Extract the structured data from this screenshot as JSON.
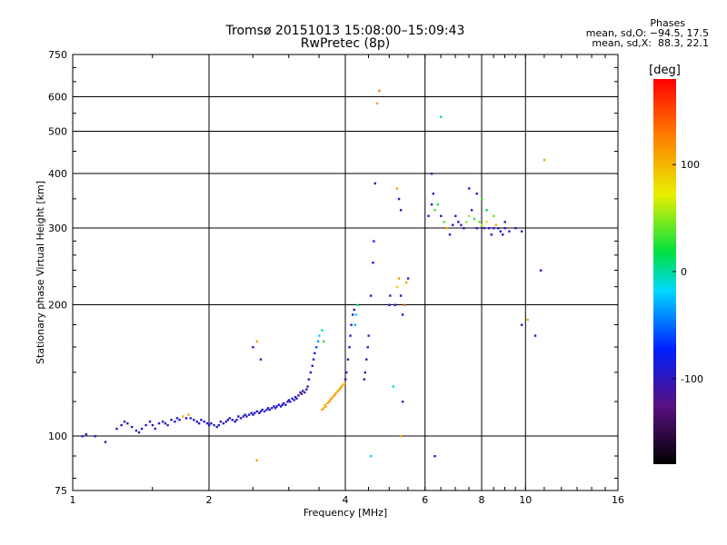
{
  "chart_data": {
    "type": "scatter",
    "title": "Tromsø 20151013 15:08:00–15:09:43",
    "subtitle": "RwPretec (8p)",
    "xlabel": "Frequency [MHz]",
    "ylabel": "Stationary phase Virtual Height [km]",
    "x_scale": "log",
    "y_scale": "log",
    "xlim": [
      1,
      16
    ],
    "ylim": [
      75,
      750
    ],
    "x_ticks": [
      1,
      2,
      4,
      6,
      8,
      10,
      16
    ],
    "y_ticks": [
      75,
      100,
      200,
      300,
      400,
      500,
      600,
      750
    ],
    "grid": true,
    "colorbar": {
      "label": "[deg]",
      "range": [
        -180,
        180
      ],
      "ticks": [
        100,
        0,
        -100
      ]
    },
    "stats_header": "Phases",
    "stats": [
      "mean, sd,O: −94.5, 17.5",
      "mean, sd,X:  88.3, 22.1"
    ],
    "series": [
      {
        "points": [
          [
            1.05,
            100,
            -95
          ],
          [
            1.07,
            101,
            -90
          ],
          [
            1.12,
            100,
            -92
          ],
          [
            1.18,
            97,
            -96
          ],
          [
            1.25,
            104,
            -98
          ],
          [
            1.28,
            106,
            -92
          ],
          [
            1.3,
            108,
            -100
          ],
          [
            1.32,
            107,
            -94
          ],
          [
            1.35,
            105,
            -96
          ],
          [
            1.38,
            103,
            -95
          ],
          [
            1.4,
            102,
            -100
          ],
          [
            1.42,
            104,
            -88
          ],
          [
            1.45,
            106,
            -94
          ],
          [
            1.48,
            108,
            -96
          ],
          [
            1.5,
            106,
            -92
          ],
          [
            1.52,
            104,
            -95
          ],
          [
            1.55,
            107,
            -98
          ],
          [
            1.58,
            108,
            -94
          ],
          [
            1.6,
            107,
            -92
          ],
          [
            1.62,
            106,
            -96
          ],
          [
            1.65,
            109,
            -90
          ],
          [
            1.68,
            108,
            -95
          ],
          [
            1.7,
            110,
            -94
          ],
          [
            1.72,
            109,
            -96
          ],
          [
            1.75,
            111,
            105
          ],
          [
            1.78,
            110,
            -93
          ],
          [
            1.8,
            112,
            110
          ],
          [
            1.82,
            110,
            -95
          ],
          [
            1.85,
            109,
            -92
          ],
          [
            1.88,
            108,
            -96
          ],
          [
            1.9,
            107,
            -94
          ],
          [
            1.92,
            109,
            -92
          ],
          [
            1.95,
            108,
            -96
          ],
          [
            1.98,
            107,
            -94
          ],
          [
            2.0,
            106,
            -95
          ],
          [
            2.02,
            107,
            -92
          ],
          [
            2.05,
            106,
            -98
          ],
          [
            2.08,
            105,
            -94
          ],
          [
            2.1,
            106,
            -95
          ],
          [
            2.12,
            108,
            -92
          ],
          [
            2.15,
            107,
            -96
          ],
          [
            2.18,
            108,
            -94
          ],
          [
            2.2,
            109,
            -95
          ],
          [
            2.22,
            110,
            -92
          ],
          [
            2.25,
            109,
            -96
          ],
          [
            2.28,
            108,
            -94
          ],
          [
            2.3,
            109,
            -90
          ],
          [
            2.32,
            111,
            -95
          ],
          [
            2.35,
            110,
            -96
          ],
          [
            2.38,
            111,
            -94
          ],
          [
            2.4,
            112,
            -92
          ],
          [
            2.42,
            111,
            -95
          ],
          [
            2.45,
            112,
            -96
          ],
          [
            2.48,
            113,
            -94
          ],
          [
            2.5,
            112,
            -92
          ],
          [
            2.52,
            113,
            -95
          ],
          [
            2.55,
            114,
            -96
          ],
          [
            2.58,
            113,
            -94
          ],
          [
            2.6,
            114,
            -95
          ],
          [
            2.62,
            115,
            -92
          ],
          [
            2.65,
            114,
            -94
          ],
          [
            2.68,
            115,
            -96
          ],
          [
            2.7,
            116,
            -95
          ],
          [
            2.72,
            115,
            -92
          ],
          [
            2.75,
            116,
            -94
          ],
          [
            2.78,
            117,
            -96
          ],
          [
            2.8,
            116,
            -95
          ],
          [
            2.82,
            117,
            -93
          ],
          [
            2.85,
            118,
            -94
          ],
          [
            2.88,
            117,
            -96
          ],
          [
            2.9,
            118,
            -95
          ],
          [
            2.92,
            119,
            -92
          ],
          [
            2.95,
            118,
            -94
          ],
          [
            2.98,
            120,
            -96
          ],
          [
            3.0,
            121,
            -95
          ],
          [
            3.02,
            120,
            -92
          ],
          [
            3.05,
            122,
            -94
          ],
          [
            3.08,
            121,
            -96
          ],
          [
            3.1,
            123,
            -95
          ],
          [
            3.12,
            122,
            -100
          ],
          [
            3.15,
            124,
            -105
          ],
          [
            3.18,
            126,
            -110
          ],
          [
            3.2,
            125,
            -120
          ],
          [
            3.22,
            127,
            -115
          ],
          [
            3.25,
            126,
            -100
          ],
          [
            3.28,
            128,
            -95
          ],
          [
            3.3,
            130,
            -110
          ],
          [
            3.32,
            135,
            -95
          ],
          [
            3.35,
            140,
            -90
          ],
          [
            3.38,
            145,
            -92
          ],
          [
            3.4,
            150,
            -94
          ],
          [
            3.42,
            155,
            -80
          ],
          [
            3.45,
            160,
            -60
          ],
          [
            3.48,
            165,
            -40
          ],
          [
            3.5,
            170,
            -20
          ],
          [
            3.55,
            175,
            0
          ],
          [
            3.58,
            165,
            30
          ],
          [
            3.55,
            115,
            110
          ],
          [
            3.58,
            116,
            105
          ],
          [
            3.6,
            118,
            100
          ],
          [
            3.62,
            117,
            115
          ],
          [
            3.65,
            119,
            108
          ],
          [
            3.68,
            120,
            112
          ],
          [
            3.7,
            121,
            104
          ],
          [
            3.72,
            122,
            110
          ],
          [
            3.75,
            123,
            106
          ],
          [
            3.78,
            124,
            112
          ],
          [
            3.8,
            125,
            108
          ],
          [
            3.82,
            126,
            104
          ],
          [
            3.85,
            127,
            110
          ],
          [
            3.88,
            128,
            106
          ],
          [
            3.9,
            129,
            112
          ],
          [
            3.92,
            130,
            108
          ],
          [
            3.95,
            131,
            104
          ],
          [
            3.98,
            132,
            100
          ],
          [
            4.0,
            135,
            -110
          ],
          [
            4.02,
            140,
            -105
          ],
          [
            4.05,
            150,
            -100
          ],
          [
            4.08,
            160,
            -95
          ],
          [
            4.1,
            170,
            -92
          ],
          [
            4.12,
            180,
            -94
          ],
          [
            4.15,
            190,
            -96
          ],
          [
            4.18,
            195,
            -100
          ],
          [
            4.2,
            180,
            -30
          ],
          [
            4.22,
            190,
            -10
          ],
          [
            4.25,
            200,
            10
          ],
          [
            4.4,
            135,
            -95
          ],
          [
            4.42,
            140,
            -100
          ],
          [
            4.45,
            150,
            -110
          ],
          [
            4.48,
            160,
            -94
          ],
          [
            4.5,
            170,
            -96
          ],
          [
            4.55,
            90,
            -20
          ],
          [
            4.55,
            210,
            -95
          ],
          [
            4.6,
            250,
            -94
          ],
          [
            4.62,
            280,
            -92
          ],
          [
            4.65,
            380,
            -96
          ],
          [
            4.7,
            580,
            110
          ],
          [
            4.75,
            620,
            130
          ],
          [
            5.0,
            200,
            -95
          ],
          [
            5.02,
            210,
            -96
          ],
          [
            5.1,
            130,
            -10
          ],
          [
            5.15,
            200,
            -94
          ],
          [
            5.2,
            220,
            90
          ],
          [
            5.25,
            230,
            120
          ],
          [
            5.3,
            210,
            -90
          ],
          [
            5.35,
            190,
            -95
          ],
          [
            5.4,
            200,
            140
          ],
          [
            5.45,
            225,
            110
          ],
          [
            5.5,
            230,
            -94
          ],
          [
            5.3,
            100,
            110
          ],
          [
            5.35,
            120,
            -95
          ],
          [
            5.2,
            370,
            110
          ],
          [
            5.25,
            350,
            -95
          ],
          [
            5.3,
            330,
            -94
          ],
          [
            6.1,
            320,
            -96
          ],
          [
            6.2,
            340,
            -95
          ],
          [
            6.25,
            360,
            -90
          ],
          [
            6.3,
            330,
            30
          ],
          [
            6.4,
            340,
            20
          ],
          [
            6.5,
            320,
            -95
          ],
          [
            6.6,
            310,
            40
          ],
          [
            6.7,
            300,
            110
          ],
          [
            6.8,
            290,
            -94
          ],
          [
            6.9,
            305,
            -96
          ],
          [
            7.0,
            320,
            -95
          ],
          [
            7.1,
            310,
            -94
          ],
          [
            7.2,
            305,
            -92
          ],
          [
            7.3,
            300,
            -96
          ],
          [
            7.4,
            310,
            50
          ],
          [
            7.5,
            320,
            60
          ],
          [
            7.6,
            330,
            -94
          ],
          [
            7.7,
            315,
            30
          ],
          [
            7.8,
            300,
            -95
          ],
          [
            7.9,
            310,
            40
          ],
          [
            8.0,
            305,
            60
          ],
          [
            8.1,
            300,
            -94
          ],
          [
            8.2,
            310,
            80
          ],
          [
            8.3,
            300,
            -96
          ],
          [
            8.4,
            290,
            -95
          ],
          [
            8.5,
            300,
            -94
          ],
          [
            8.6,
            305,
            110
          ],
          [
            8.7,
            300,
            -92
          ],
          [
            8.8,
            295,
            -96
          ],
          [
            8.9,
            290,
            -94
          ],
          [
            9.0,
            300,
            -95
          ],
          [
            9.2,
            295,
            -94
          ],
          [
            9.5,
            300,
            -96
          ],
          [
            9.8,
            295,
            -95
          ],
          [
            7.5,
            370,
            -95
          ],
          [
            7.8,
            360,
            -94
          ],
          [
            8.0,
            350,
            30
          ],
          [
            8.2,
            330,
            20
          ],
          [
            8.5,
            320,
            40
          ],
          [
            9.0,
            310,
            -95
          ],
          [
            6.3,
            90,
            -95
          ],
          [
            6.5,
            540,
            0
          ],
          [
            6.2,
            400,
            -90
          ],
          [
            9.8,
            180,
            -96
          ],
          [
            10.1,
            185,
            110
          ],
          [
            10.5,
            170,
            -95
          ],
          [
            10.8,
            240,
            -94
          ],
          [
            11.0,
            430,
            110
          ],
          [
            2.5,
            160,
            -95
          ],
          [
            2.55,
            165,
            110
          ],
          [
            2.6,
            150,
            -94
          ],
          [
            2.55,
            88,
            110
          ]
        ]
      }
    ]
  }
}
